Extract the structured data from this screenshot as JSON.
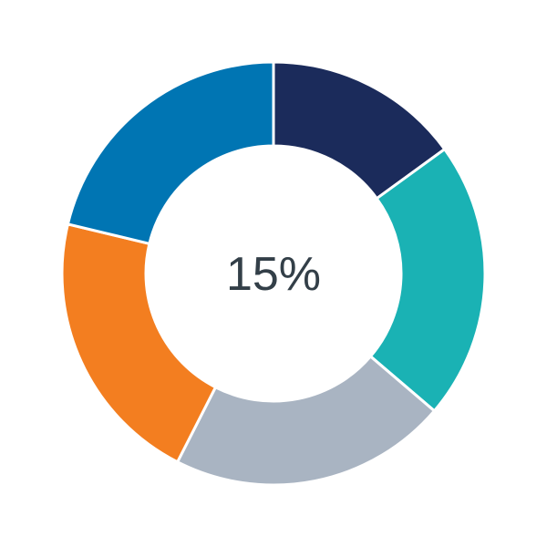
{
  "chart_data": {
    "type": "pie",
    "variant": "donut",
    "center_label": "15%",
    "values": [
      15,
      21.25,
      21.25,
      21.25,
      21.25
    ],
    "colors": [
      "#1b2b5b",
      "#1ab2b4",
      "#a9b4c2",
      "#f37e20",
      "#0075b3"
    ],
    "start_angle_deg": 0,
    "direction": "clockwise",
    "separator_color": "#ffffff",
    "legend": "none"
  }
}
